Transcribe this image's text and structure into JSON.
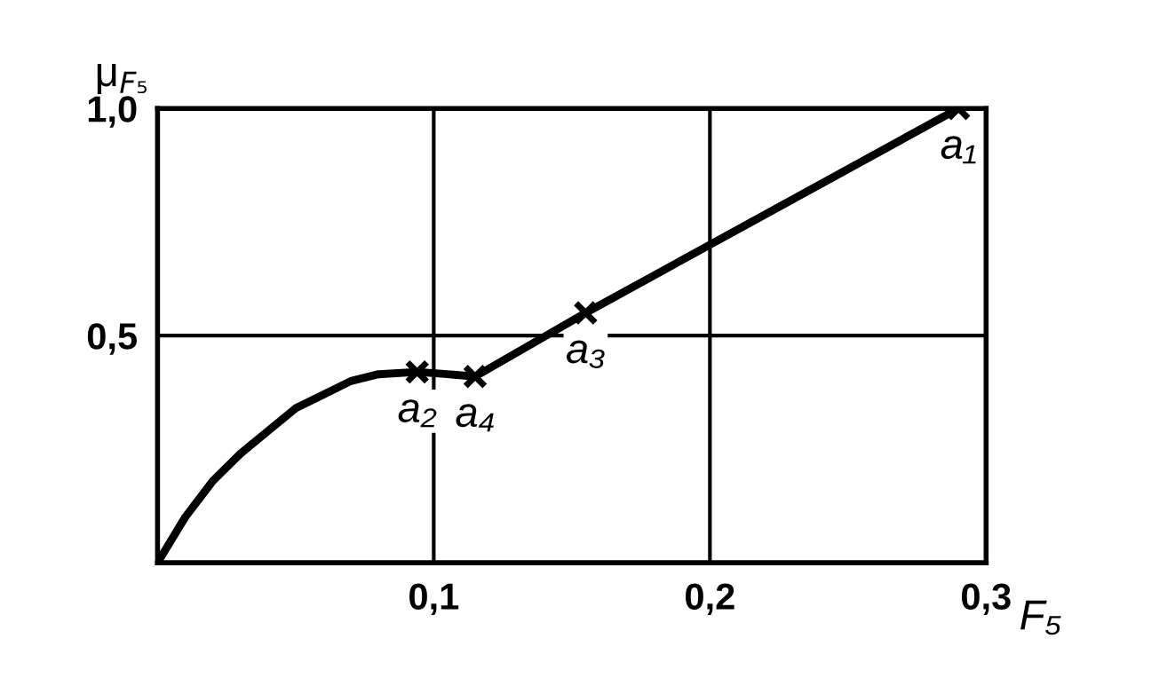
{
  "chart_data": {
    "type": "line",
    "xlabel": "F₅",
    "ylabel": "μ$_{F₅}$",
    "xlim": [
      0,
      0.3
    ],
    "ylim": [
      0,
      1.0
    ],
    "xticks": [
      {
        "value": 0.1,
        "label": "0,1"
      },
      {
        "value": 0.2,
        "label": "0,2"
      },
      {
        "value": 0.3,
        "label": "0,3"
      }
    ],
    "yticks": [
      {
        "value": 0.5,
        "label": "0,5"
      },
      {
        "value": 1.0,
        "label": "1,0"
      }
    ],
    "grid": true,
    "series": [
      {
        "color": "#000000",
        "x": [
          0,
          0.01,
          0.02,
          0.03,
          0.04,
          0.05,
          0.06,
          0.07,
          0.08,
          0.094,
          0.105,
          0.115,
          0.155,
          0.29
        ],
        "values": [
          0,
          0.1,
          0.18,
          0.24,
          0.29,
          0.34,
          0.37,
          0.4,
          0.415,
          0.42,
          0.415,
          0.41,
          0.55,
          1.0
        ]
      },
      {
        "type": "scatter",
        "color": "#000000",
        "marker": "cross",
        "x": [
          0.29,
          0.094,
          0.155,
          0.115
        ],
        "values": [
          1.0,
          0.42,
          0.55,
          0.41
        ]
      }
    ],
    "annotations": [
      {
        "text": "a₁",
        "x": 0.29,
        "y": 1.0
      },
      {
        "text": "a₂",
        "x": 0.094,
        "y": 0.42
      },
      {
        "text": "a₃",
        "x": 0.155,
        "y": 0.55
      },
      {
        "text": "a₄",
        "x": 0.115,
        "y": 0.41
      }
    ]
  }
}
